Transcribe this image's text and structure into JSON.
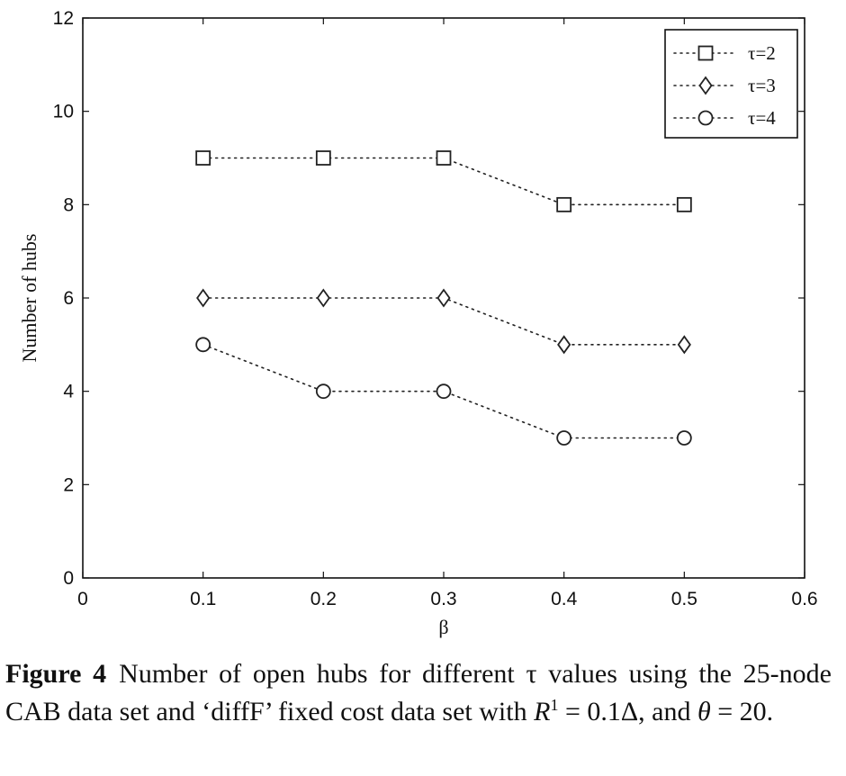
{
  "chart_data": {
    "type": "line",
    "xlabel": "β",
    "ylabel": "Number of hubs",
    "xlim": [
      0,
      0.6
    ],
    "ylim": [
      0,
      12
    ],
    "x_ticks": [
      "0",
      "0.1",
      "0.2",
      "0.3",
      "0.4",
      "0.5",
      "0.6"
    ],
    "y_ticks": [
      "0",
      "2",
      "4",
      "6",
      "8",
      "10",
      "12"
    ],
    "grid": false,
    "legend_position": "top-right",
    "x": [
      0.1,
      0.2,
      0.3,
      0.4,
      0.5
    ],
    "series": [
      {
        "name": "τ=2",
        "marker": "square",
        "values": [
          9,
          9,
          9,
          8,
          8
        ]
      },
      {
        "name": "τ=3",
        "marker": "diamond",
        "values": [
          6,
          6,
          6,
          5,
          5
        ]
      },
      {
        "name": "τ=4",
        "marker": "circle",
        "values": [
          5,
          4,
          4,
          3,
          3
        ]
      }
    ],
    "line_style": "dotted",
    "line_color": "#222222"
  },
  "caption": {
    "label": "Figure 4",
    "text_part1": "Number of open hubs for different τ values using the 25-node CAB data set and ‘diffF’ fixed cost data set with ",
    "r_symbol": "R",
    "r_superscript": "1",
    "text_part2": " = 0.1Δ, and ",
    "theta_symbol": "θ",
    "text_part3": " = 20."
  }
}
